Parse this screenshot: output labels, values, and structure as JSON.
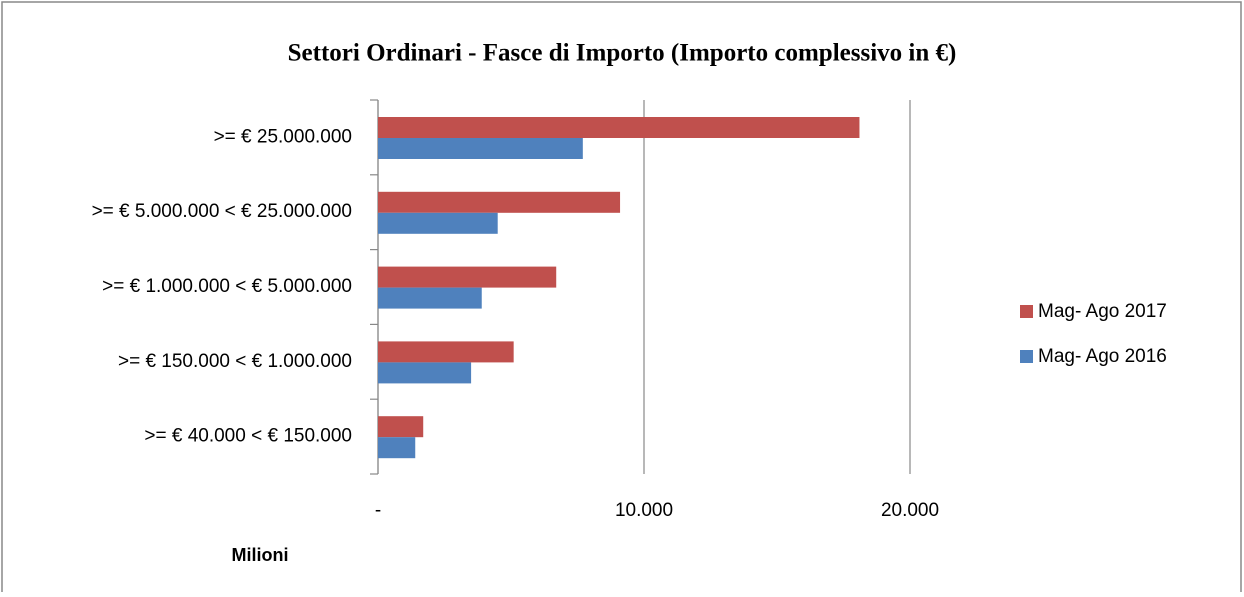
{
  "chart_data": {
    "type": "bar",
    "orientation": "horizontal",
    "title": "Settori Ordinari - Fasce di Importo (Importo complessivo in €)",
    "xlabel": "Milioni",
    "categories": [
      ">= € 25.000.000",
      ">= € 5.000.000 < € 25.000.000",
      ">= € 1.000.000 < € 5.000.000",
      ">= € 150.000 < € 1.000.000",
      ">= € 40.000 < € 150.000"
    ],
    "series": [
      {
        "name": "Mag- Ago 2017",
        "color": "#c0504d",
        "values": [
          18100,
          9100,
          6700,
          5100,
          1700
        ]
      },
      {
        "name": "Mag- Ago 2016",
        "color": "#4f81bd",
        "values": [
          7700,
          4500,
          3900,
          3500,
          1400
        ]
      }
    ],
    "xlim": [
      0,
      20000
    ],
    "xticks": [
      {
        "value": 0,
        "label": "-"
      },
      {
        "value": 10000,
        "label": "10.000"
      },
      {
        "value": 20000,
        "label": "20.000"
      }
    ],
    "grid": true,
    "legend": "right"
  }
}
